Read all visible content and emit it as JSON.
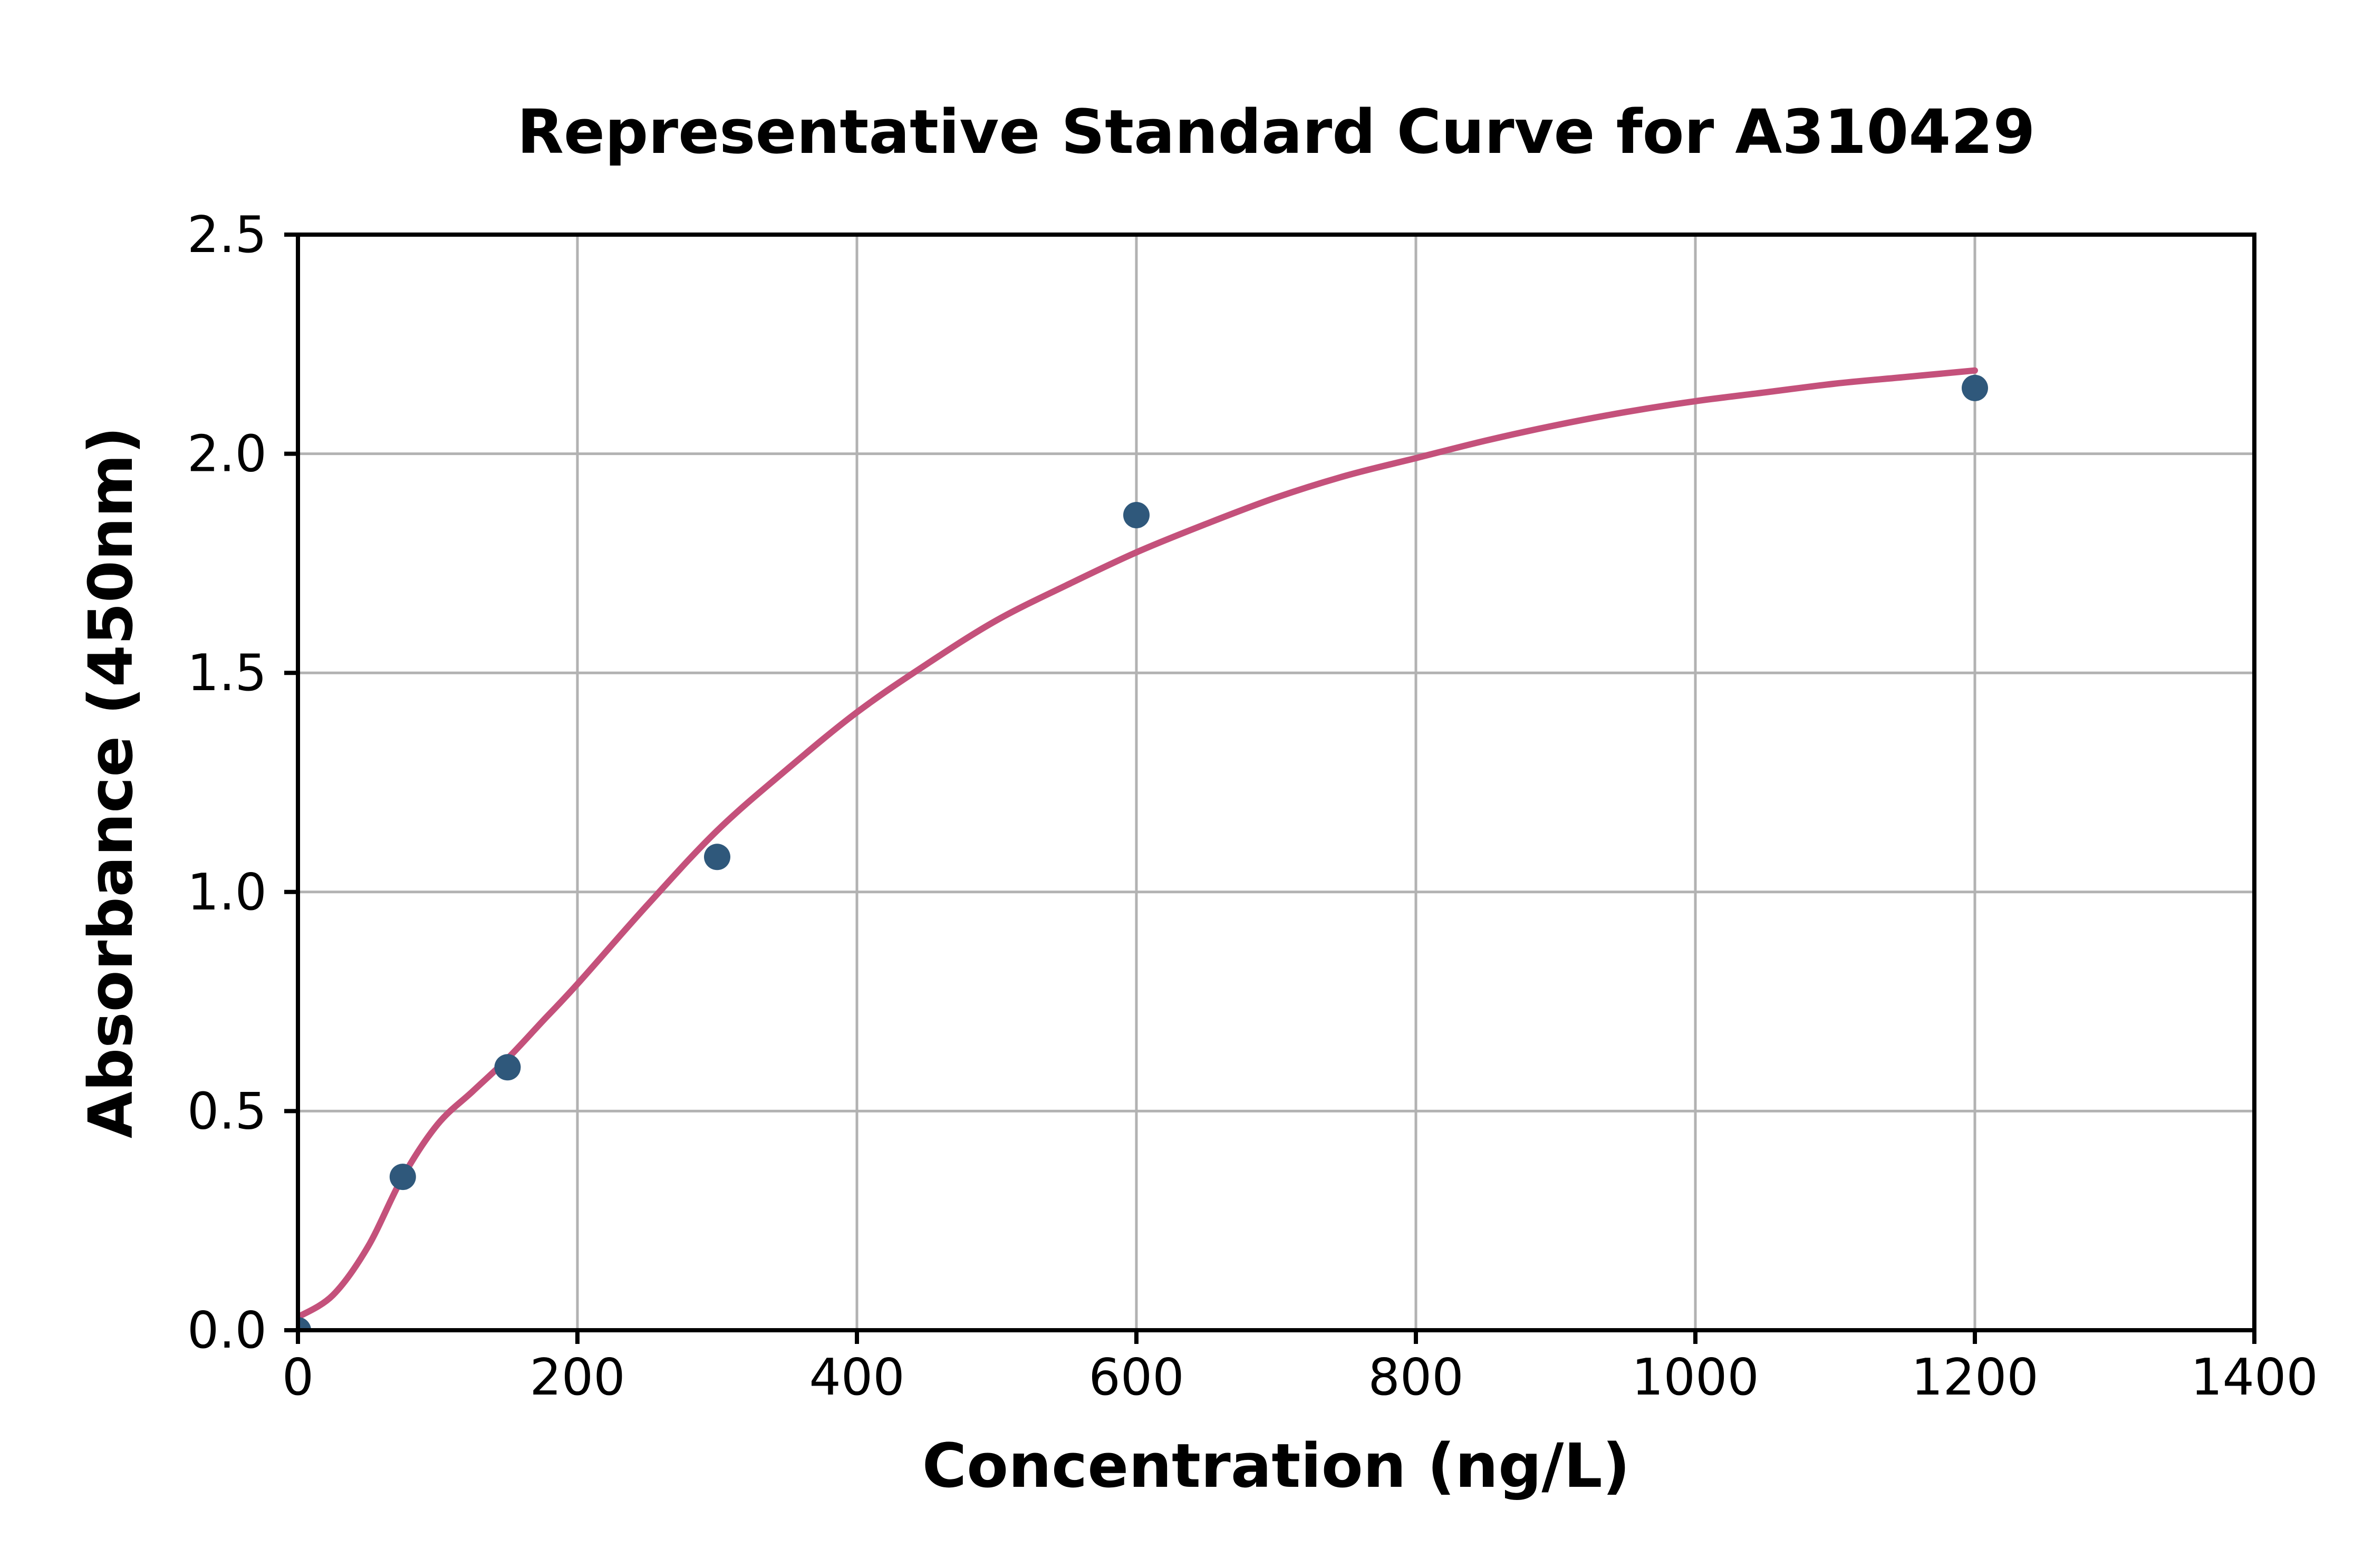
{
  "page": {
    "background": "#ffffff"
  },
  "chart_data": {
    "type": "scatter",
    "title": "Representative Standard Curve for A310429",
    "xlabel": "Concentration (ng/L)",
    "ylabel": "Absorbance (450nm)",
    "xlim": [
      0,
      1400
    ],
    "ylim": [
      0,
      2.5
    ],
    "x_ticks": [
      0,
      200,
      400,
      600,
      800,
      1000,
      1200,
      1400
    ],
    "x_tick_labels": [
      "0",
      "200",
      "400",
      "600",
      "800",
      "1000",
      "1200",
      "1400"
    ],
    "y_ticks": [
      0,
      0.5,
      1.0,
      1.5,
      2.0,
      2.5
    ],
    "y_tick_labels": [
      "0.0",
      "0.5",
      "1.0",
      "1.5",
      "2.0",
      "2.5"
    ],
    "grid": true,
    "legend": "none",
    "series": [
      {
        "name": "standard-points",
        "type": "scatter",
        "color": "#2F587B",
        "marker": "circle",
        "points": [
          {
            "x": 0,
            "y": 0.0
          },
          {
            "x": 75,
            "y": 0.35
          },
          {
            "x": 150,
            "y": 0.6
          },
          {
            "x": 300,
            "y": 1.08
          },
          {
            "x": 600,
            "y": 1.86
          },
          {
            "x": 1200,
            "y": 2.15
          }
        ]
      },
      {
        "name": "fitted-curve",
        "type": "line",
        "color": "#C4517B",
        "x": [
          0,
          25,
          50,
          75,
          100,
          125,
          150,
          175,
          200,
          250,
          300,
          350,
          400,
          450,
          500,
          550,
          600,
          650,
          700,
          750,
          800,
          850,
          900,
          950,
          1000,
          1050,
          1100,
          1150,
          1200
        ],
        "y": [
          0.03,
          0.08,
          0.19,
          0.35,
          0.47,
          0.545,
          0.62,
          0.705,
          0.79,
          0.97,
          1.14,
          1.28,
          1.41,
          1.52,
          1.62,
          1.7,
          1.775,
          1.84,
          1.9,
          1.95,
          1.99,
          2.03,
          2.065,
          2.095,
          2.12,
          2.14,
          2.16,
          2.175,
          2.19
        ]
      }
    ],
    "style": {
      "grid_color": "#B2B2B2",
      "spine_color": "#000000",
      "text_color": "#000000",
      "background": "#ffffff"
    }
  }
}
